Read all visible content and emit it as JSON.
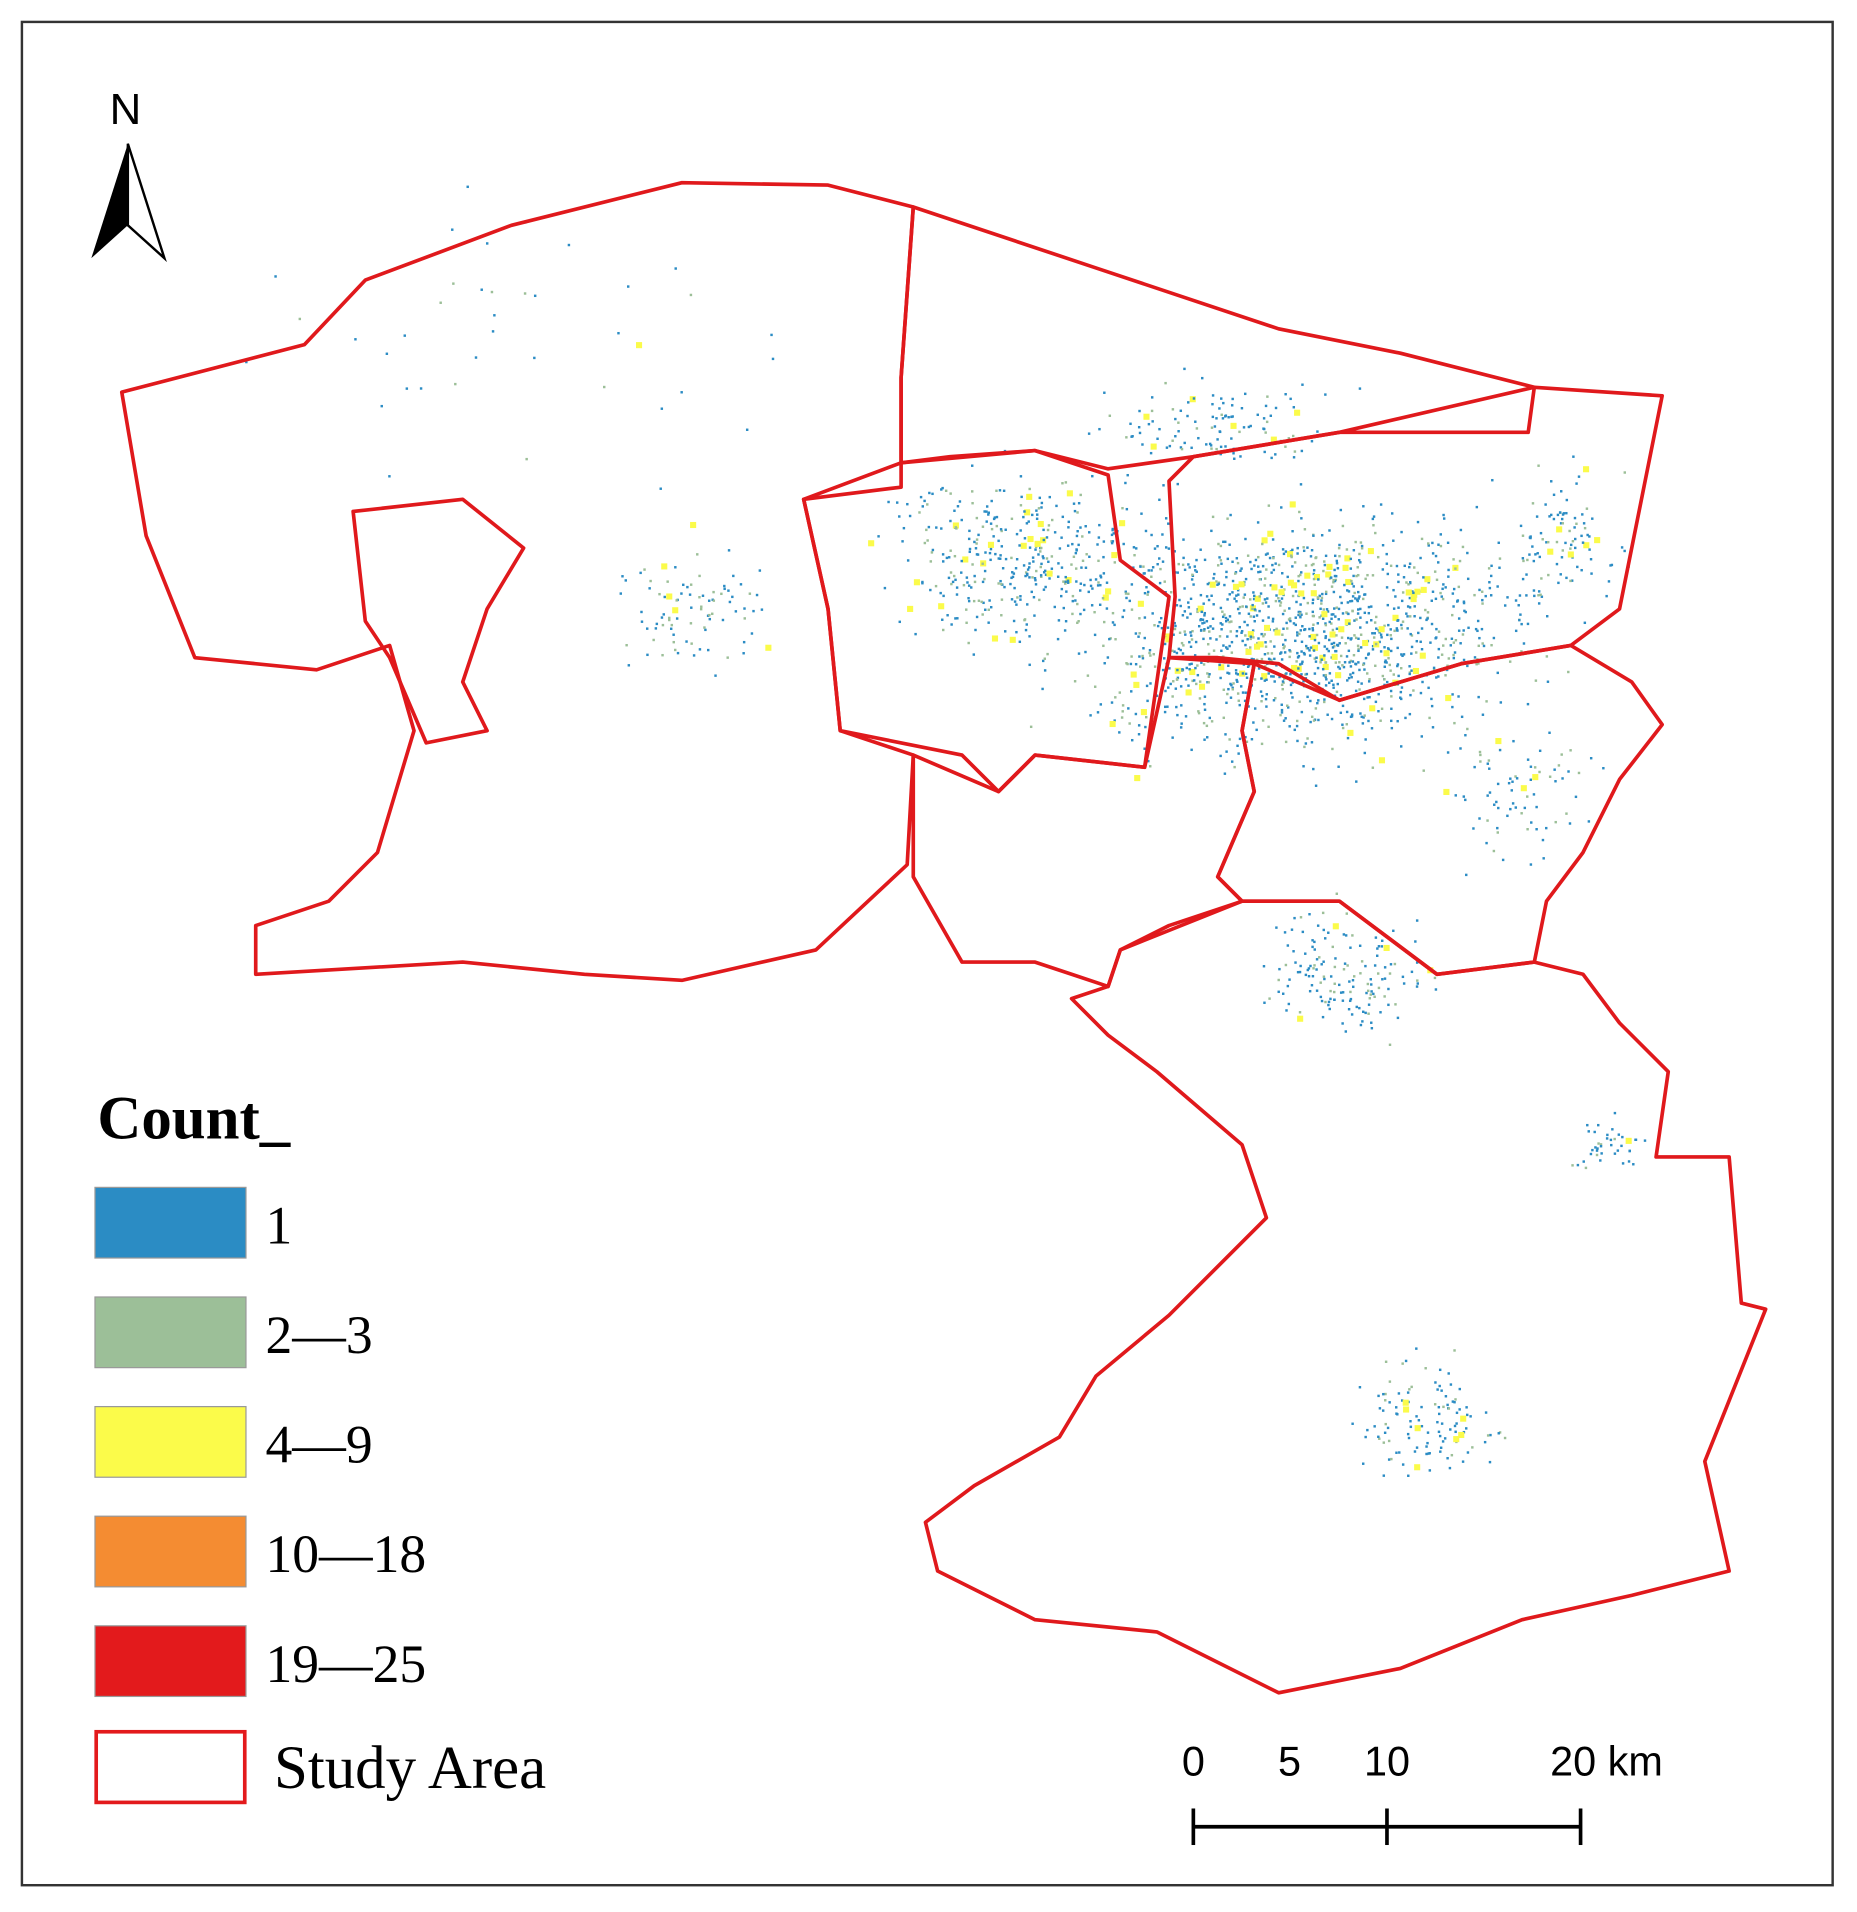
{
  "north_label": "N",
  "legend": {
    "title": "Count_",
    "items": [
      {
        "label": "1",
        "color": "#2b8cc4"
      },
      {
        "label": "2—3",
        "color": "#9cbf98"
      },
      {
        "label": "4—9",
        "color": "#fbfb4a"
      },
      {
        "label": "10—18",
        "color": "#f48c32"
      },
      {
        "label": "19—25",
        "color": "#e31a1c"
      },
      {
        "label": "Study Area",
        "color": "#e31a1c",
        "outline": true
      }
    ]
  },
  "scale_bar": {
    "labels": [
      "0",
      "5",
      "10",
      "20 km"
    ]
  }
}
